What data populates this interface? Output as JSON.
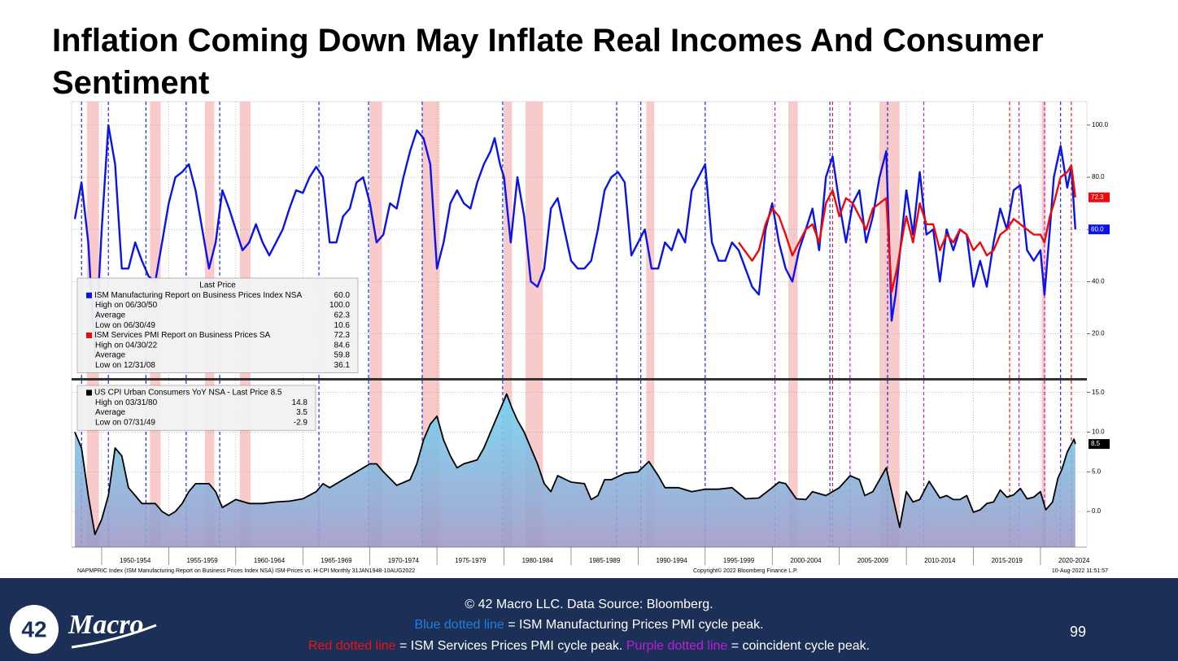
{
  "header": {
    "title_line1": "Inflation Coming Down May Inflate Real Incomes And Consumer",
    "title_line2": "Sentiment"
  },
  "chart_data": [
    {
      "type": "line",
      "ylim": [
        3,
        109
      ],
      "yticks": [
        {
          "value": 20,
          "label": "20.0"
        },
        {
          "value": 40,
          "label": "40.0"
        },
        {
          "value": 60,
          "label": "60.0"
        },
        {
          "value": 80,
          "label": "80.0"
        },
        {
          "value": 100,
          "label": "100.0"
        }
      ],
      "grid": true,
      "series": [
        {
          "name": "ISM Manufacturing Report on Business Prices Index NSA",
          "color": "#0a14e6",
          "last_label": "60.0",
          "x": [
            1948,
            1948.5,
            1949,
            1949.5,
            1950,
            1950.5,
            1951,
            1951.5,
            1952,
            1952.5,
            1953,
            1953.5,
            1954,
            1954.5,
            1955,
            1955.5,
            1956,
            1956.5,
            1957,
            1957.5,
            1958,
            1958.5,
            1959,
            1959.5,
            1960,
            1960.5,
            1961,
            1961.5,
            1962,
            1962.5,
            1963,
            1963.5,
            1964,
            1964.5,
            1965,
            1965.5,
            1966,
            1966.5,
            1967,
            1967.5,
            1968,
            1968.5,
            1969,
            1969.5,
            1970,
            1970.5,
            1971,
            1971.5,
            1972,
            1972.5,
            1973,
            1973.5,
            1974,
            1974.5,
            1975,
            1975.5,
            1976,
            1976.5,
            1977,
            1977.5,
            1978,
            1978.5,
            1979,
            1979.3,
            1979.7,
            1980,
            1980.5,
            1981,
            1981.5,
            1982,
            1982.5,
            1983,
            1983.5,
            1984,
            1984.5,
            1985,
            1985.5,
            1986,
            1986.5,
            1987,
            1987.5,
            1988,
            1988.5,
            1989,
            1989.5,
            1990,
            1990.5,
            1991,
            1991.5,
            1992,
            1992.5,
            1993,
            1993.5,
            1994,
            1994.5,
            1995,
            1995.5,
            1996,
            1996.5,
            1997,
            1997.5,
            1998,
            1998.5,
            1999,
            1999.5,
            2000,
            2000.5,
            2001,
            2001.5,
            2002,
            2002.5,
            2003,
            2003.5,
            2004,
            2004.5,
            2005,
            2005.5,
            2006,
            2006.5,
            2007,
            2007.5,
            2008,
            2008.5,
            2008.9,
            2009.2,
            2009.7,
            2010,
            2010.5,
            2011,
            2011.5,
            2012,
            2012.5,
            2013,
            2013.5,
            2014,
            2014.5,
            2015,
            2015.5,
            2016,
            2016.5,
            2017,
            2017.5,
            2018,
            2018.5,
            2019,
            2019.5,
            2020,
            2020.3,
            2020.7,
            2021,
            2021.5,
            2022,
            2022.3,
            2022.6
          ],
          "values": [
            64,
            78,
            55,
            11,
            60,
            100,
            85,
            45,
            45,
            55,
            48,
            42,
            40,
            55,
            70,
            80,
            82,
            85,
            75,
            60,
            45,
            55,
            75,
            68,
            60,
            52,
            55,
            62,
            55,
            50,
            55,
            60,
            68,
            75,
            74,
            80,
            84,
            80,
            55,
            55,
            65,
            68,
            78,
            80,
            70,
            55,
            58,
            70,
            68,
            80,
            90,
            98,
            95,
            85,
            45,
            55,
            70,
            75,
            70,
            68,
            78,
            85,
            90,
            95,
            85,
            80,
            55,
            80,
            65,
            40,
            38,
            45,
            68,
            72,
            60,
            48,
            45,
            45,
            48,
            60,
            75,
            80,
            82,
            78,
            50,
            55,
            60,
            45,
            45,
            55,
            52,
            60,
            55,
            75,
            80,
            85,
            55,
            48,
            48,
            55,
            52,
            45,
            38,
            35,
            60,
            70,
            55,
            45,
            40,
            52,
            60,
            68,
            52,
            80,
            88,
            70,
            55,
            70,
            75,
            55,
            65,
            80,
            90,
            25,
            35,
            60,
            75,
            58,
            82,
            58,
            60,
            40,
            60,
            52,
            60,
            58,
            38,
            48,
            38,
            55,
            68,
            60,
            75,
            77,
            52,
            48,
            52,
            35,
            60,
            80,
            92,
            76,
            84,
            60
          ]
        },
        {
          "name": "ISM Services PMI Report on Business Prices SA",
          "color": "#ee0a0a",
          "last_label": "72.3",
          "x": [
            1997.5,
            1998.5,
            1999,
            1999.5,
            2000,
            2000.5,
            2001,
            2001.5,
            2002,
            2002.5,
            2003,
            2003.5,
            2004,
            2004.5,
            2005,
            2005.5,
            2006,
            2006.5,
            2007,
            2007.5,
            2008,
            2008.5,
            2008.9,
            2009.3,
            2009.8,
            2010,
            2010.5,
            2011,
            2011.5,
            2012,
            2012.5,
            2013,
            2013.5,
            2014,
            2014.5,
            2015,
            2015.5,
            2016,
            2016.5,
            2017,
            2017.5,
            2018,
            2018.5,
            2019,
            2019.5,
            2020,
            2020.3,
            2020.7,
            2021,
            2021.5,
            2022,
            2022.3,
            2022.6
          ],
          "values": [
            55,
            48,
            52,
            62,
            68,
            65,
            58,
            50,
            55,
            60,
            62,
            55,
            70,
            75,
            65,
            72,
            70,
            65,
            60,
            68,
            70,
            72,
            36,
            45,
            60,
            65,
            55,
            70,
            62,
            62,
            52,
            58,
            55,
            60,
            58,
            52,
            55,
            50,
            52,
            58,
            60,
            64,
            62,
            60,
            58,
            58,
            55,
            65,
            70,
            80,
            82,
            84.6,
            72.3
          ]
        }
      ],
      "legend": {
        "title": "Last Price",
        "rows": [
          {
            "label": "ISM Manufacturing Report on Business Prices Index NSA",
            "value": "60.0"
          },
          {
            "label": "High on 06/30/50",
            "value": "100.0"
          },
          {
            "label": "Average",
            "value": "62.3"
          },
          {
            "label": "Low on 06/30/49",
            "value": "10.6"
          },
          {
            "label": "ISM Services PMI Report on Business Prices SA",
            "value": "72.3"
          },
          {
            "label": "High on 04/30/22",
            "value": "84.6"
          },
          {
            "label": "Average",
            "value": "59.8"
          },
          {
            "label": "Low on 12/31/08",
            "value": "36.1"
          }
        ]
      },
      "recessions": [
        [
          1948.9,
          1949.8
        ],
        [
          1953.6,
          1954.4
        ],
        [
          1957.7,
          1958.4
        ],
        [
          1960.3,
          1961.1
        ],
        [
          1970.0,
          1970.9
        ],
        [
          1973.9,
          1975.2
        ],
        [
          1980.0,
          1980.6
        ],
        [
          1981.6,
          1982.9
        ],
        [
          1990.6,
          1991.2
        ],
        [
          2001.2,
          2001.9
        ],
        [
          2008.0,
          2009.5
        ],
        [
          2020.1,
          2020.4
        ]
      ],
      "blue_peaks": [
        1948.5,
        1950.5,
        1953.3,
        1956.3,
        1958.8,
        1966.2,
        1969.9,
        1973.9,
        1979.9,
        1988.4,
        1990.2,
        1995.0,
        2004.3,
        2008.6,
        2021.5
      ],
      "red_peaks": [
        2004.5,
        2017.7,
        2022.3
      ],
      "purple_peaks": [
        2000.2,
        2005.8,
        2011.3,
        2018.4,
        2020.3
      ]
    },
    {
      "type": "area",
      "ylim": [
        -4.5,
        16.5
      ],
      "yticks": [
        {
          "value": 0,
          "label": "0.0"
        },
        {
          "value": 5,
          "label": "5.0"
        },
        {
          "value": 10,
          "label": "10.0"
        },
        {
          "value": 15,
          "label": "15.0"
        }
      ],
      "grid": true,
      "xlim": [
        1948,
        2023.4
      ],
      "xgrid": [
        1950,
        1955,
        1960,
        1965,
        1970,
        1975,
        1980,
        1985,
        1990,
        1995,
        2000,
        2005,
        2010,
        2015,
        2020
      ],
      "xticks": [
        {
          "value": 1952.5,
          "label": "1950-1954"
        },
        {
          "value": 1957.5,
          "label": "1955-1959"
        },
        {
          "value": 1962.5,
          "label": "1960-1964"
        },
        {
          "value": 1967.5,
          "label": "1965-1969"
        },
        {
          "value": 1972.5,
          "label": "1970-1974"
        },
        {
          "value": 1977.5,
          "label": "1975-1979"
        },
        {
          "value": 1982.5,
          "label": "1980-1984"
        },
        {
          "value": 1987.5,
          "label": "1985-1989"
        },
        {
          "value": 1992.5,
          "label": "1990-1994"
        },
        {
          "value": 1997.5,
          "label": "1995-1999"
        },
        {
          "value": 2002.5,
          "label": "2000-2004"
        },
        {
          "value": 2007.5,
          "label": "2005-2009"
        },
        {
          "value": 2012.5,
          "label": "2010-2014"
        },
        {
          "value": 2017.5,
          "label": "2015-2019"
        },
        {
          "value": 2022.5,
          "label": "2020-2024"
        }
      ],
      "series": [
        {
          "name": "US CPI Urban Consumers YoY NSA",
          "color": "#000000",
          "last_label": "8.5",
          "x": [
            1948,
            1948.5,
            1949,
            1949.5,
            1950,
            1950.5,
            1951,
            1951.5,
            1952,
            1952.5,
            1953,
            1953.5,
            1954,
            1954.5,
            1955,
            1955.5,
            1956,
            1956.5,
            1957,
            1957.5,
            1958,
            1958.5,
            1959,
            1959.5,
            1960,
            1961,
            1962,
            1963,
            1964,
            1965,
            1966,
            1966.5,
            1967,
            1968,
            1969,
            1970,
            1970.5,
            1971,
            1972,
            1973,
            1973.5,
            1974,
            1974.5,
            1975,
            1975.5,
            1976,
            1976.5,
            1977,
            1978,
            1978.5,
            1979,
            1979.5,
            1980.2,
            1980.6,
            1981,
            1981.5,
            1982,
            1982.5,
            1983,
            1983.5,
            1984,
            1985,
            1986,
            1986.5,
            1987,
            1987.5,
            1988,
            1989,
            1990,
            1990.8,
            1991.5,
            1992,
            1993,
            1994,
            1995,
            1996,
            1997,
            1998,
            1999,
            2000,
            2000.5,
            2001,
            2001.8,
            2002.5,
            2003,
            2004,
            2005,
            2005.8,
            2006.5,
            2006.9,
            2007.5,
            2008.5,
            2009.5,
            2010,
            2010.5,
            2011,
            2011.7,
            2012.5,
            2013,
            2013.5,
            2014,
            2014.5,
            2015,
            2015.5,
            2016,
            2016.5,
            2017,
            2017.5,
            2018,
            2018.5,
            2019,
            2019.5,
            2020,
            2020.4,
            2020.9,
            2021.3,
            2021.6,
            2022,
            2022.5,
            2022.6
          ],
          "values": [
            10,
            8,
            2,
            -2.9,
            -1,
            2,
            8,
            7,
            3,
            2,
            1,
            1,
            1,
            0,
            -0.5,
            0,
            1,
            2.5,
            3.5,
            3.5,
            3.5,
            2.5,
            0.5,
            1,
            1.5,
            1,
            1,
            1.2,
            1.3,
            1.6,
            2.5,
            3.5,
            3,
            4,
            5,
            6,
            6,
            5,
            3.3,
            4,
            6,
            9,
            11,
            12,
            9,
            7,
            5.5,
            6,
            6.5,
            8,
            10,
            12,
            14.8,
            13,
            11.5,
            10,
            8,
            6,
            3.5,
            2.5,
            4.5,
            3.7,
            3.5,
            1.5,
            2,
            4,
            4,
            4.8,
            5,
            6.3,
            4.5,
            3,
            3,
            2.5,
            2.8,
            2.8,
            3,
            1.6,
            1.7,
            3,
            3.7,
            3.5,
            1.6,
            1.5,
            2.5,
            2,
            3,
            4.5,
            4,
            2,
            2.5,
            5.5,
            -2,
            2.5,
            1.2,
            1.5,
            3.8,
            1.7,
            2,
            1.5,
            1.5,
            2,
            -0.1,
            0.2,
            1,
            1.2,
            2.7,
            1.8,
            2.1,
            2.9,
            1.6,
            1.8,
            2.5,
            0.2,
            1.2,
            4.2,
            5.3,
            7.5,
            9.1,
            8.5
          ]
        }
      ],
      "legend": {
        "rows": [
          {
            "label": "US CPI Urban Consumers YoY NSA - Last Price 8.5"
          },
          {
            "label": "High on 03/31/80",
            "value": "14.8"
          },
          {
            "label": "Average",
            "value": "3.5"
          },
          {
            "label": "Low on 07/31/49",
            "value": "-2.9"
          }
        ]
      },
      "footnote_left": "NAPMPRIC Index (ISM Manufacturing Report on Business Prices Index NSA) ISM-Prices vs. H-CPI  Monthly 31JAN1948-10AUG2022",
      "footnote_center": "Copyright© 2022 Bloomberg Finance L.P.",
      "footnote_right": "10-Aug-2022 11:51:57"
    }
  ],
  "footer": {
    "line1": "© 42 Macro LLC. Data Source: Bloomberg.",
    "blue_key": "Blue dotted line",
    "blue_text": " = ISM Manufacturing Prices PMI cycle peak.",
    "red_key": "Red dotted line",
    "red_text": " = ISM Services Prices PMI cycle peak. ",
    "purple_key": "Purple dotted line",
    "purple_text": " = coincident cycle peak.",
    "page": "99",
    "logo_number": "42",
    "logo_word": "Macro"
  }
}
